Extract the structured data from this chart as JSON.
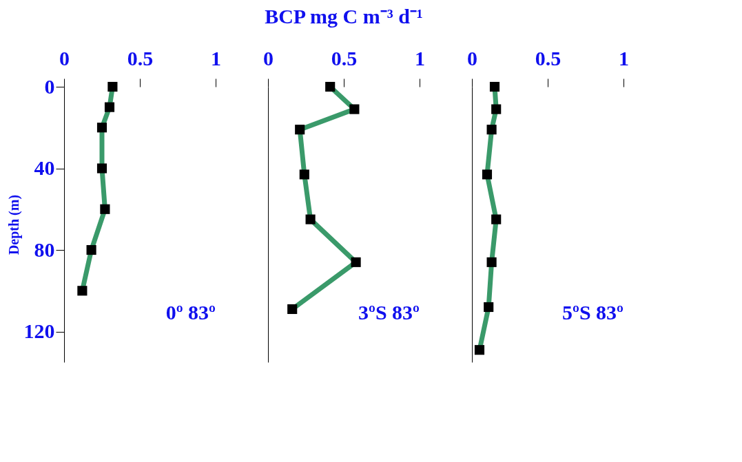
{
  "chart_data": [
    {
      "type": "line",
      "ylabel": "Depth (m)",
      "xlim": [
        0,
        1
      ],
      "xticks": [
        0,
        0.5,
        1
      ],
      "ylim": [
        135,
        0
      ],
      "yticks": [
        0,
        40,
        80,
        120
      ],
      "marker": "square",
      "grid": false,
      "annotations": [
        "0º 83º"
      ],
      "series": [
        {
          "color": "#3a9a6a",
          "x": [
            0.32,
            0.3,
            0.25,
            0.25,
            0.27,
            0.18,
            0.12
          ],
          "values": [
            0,
            10,
            20,
            40,
            60,
            80,
            100
          ]
        }
      ]
    },
    {
      "type": "line",
      "title": "BCP mg C m⁻³ d⁻¹",
      "xlim": [
        0,
        1
      ],
      "xticks": [
        0,
        0.5,
        1
      ],
      "ylim": [
        135,
        0
      ],
      "tick_labels": "x",
      "marker": "square",
      "grid": false,
      "annotations": [
        "3ºS 83º"
      ],
      "series": [
        {
          "color": "#3a9a6a",
          "x": [
            0.41,
            0.57,
            0.21,
            0.24,
            0.28,
            0.58,
            0.16
          ],
          "values": [
            0,
            11,
            21,
            43,
            65,
            86,
            109
          ]
        }
      ]
    },
    {
      "type": "line",
      "xlim": [
        0,
        1
      ],
      "xticks": [
        0,
        0.5,
        1
      ],
      "ylim": [
        135,
        0
      ],
      "tick_labels": "x",
      "marker": "square",
      "grid": false,
      "annotations": [
        "5ºS 83º"
      ],
      "series": [
        {
          "color": "#3a9a6a",
          "x": [
            0.15,
            0.16,
            0.13,
            0.1,
            0.16,
            0.13,
            0.11,
            0.05
          ],
          "values": [
            0,
            11,
            21,
            43,
            65,
            86,
            108,
            129
          ]
        }
      ]
    }
  ]
}
